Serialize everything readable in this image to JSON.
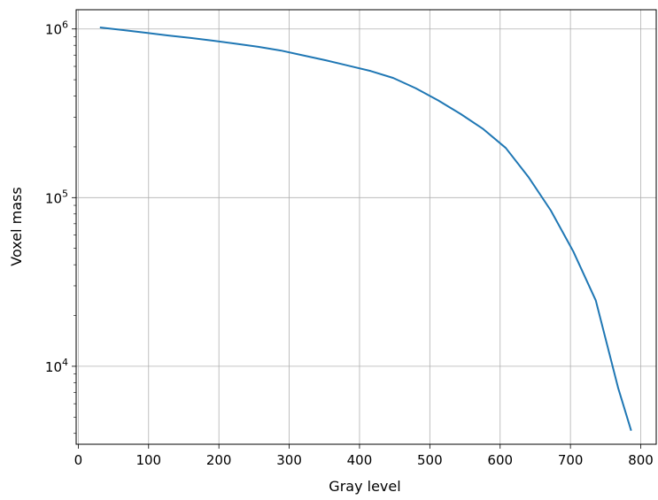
{
  "chart_data": {
    "type": "line",
    "title": "",
    "xlabel": "Gray level",
    "ylabel": "Voxel mass",
    "xlim": [
      -3,
      822
    ],
    "ylim": [
      3450,
      1300000
    ],
    "yscale": "log",
    "grid": true,
    "x_ticks": [
      {
        "value": 0,
        "label": "0"
      },
      {
        "value": 100,
        "label": "100"
      },
      {
        "value": 200,
        "label": "200"
      },
      {
        "value": 300,
        "label": "300"
      },
      {
        "value": 400,
        "label": "400"
      },
      {
        "value": 500,
        "label": "500"
      },
      {
        "value": 600,
        "label": "600"
      },
      {
        "value": 700,
        "label": "700"
      },
      {
        "value": 800,
        "label": "800"
      }
    ],
    "y_ticks": [
      {
        "value": 10000,
        "base": "10",
        "exp": "4"
      },
      {
        "value": 100000,
        "base": "10",
        "exp": "5"
      },
      {
        "value": 1000000,
        "base": "10",
        "exp": "6"
      }
    ],
    "series": [
      {
        "color": "#1f77b4",
        "x": [
          32,
          64,
          96,
          128,
          160,
          192,
          224,
          256,
          288,
          320,
          352,
          384,
          416,
          448,
          480,
          512,
          544,
          576,
          608,
          640,
          672,
          704,
          736,
          768,
          786
        ],
        "y": [
          1020000,
          985000,
          950000,
          915000,
          885000,
          852000,
          818000,
          784000,
          745000,
          697000,
          652000,
          606000,
          563000,
          512000,
          445000,
          377000,
          313000,
          255000,
          197000,
          133000,
          84000,
          48000,
          24600,
          7400,
          4200
        ]
      }
    ]
  }
}
